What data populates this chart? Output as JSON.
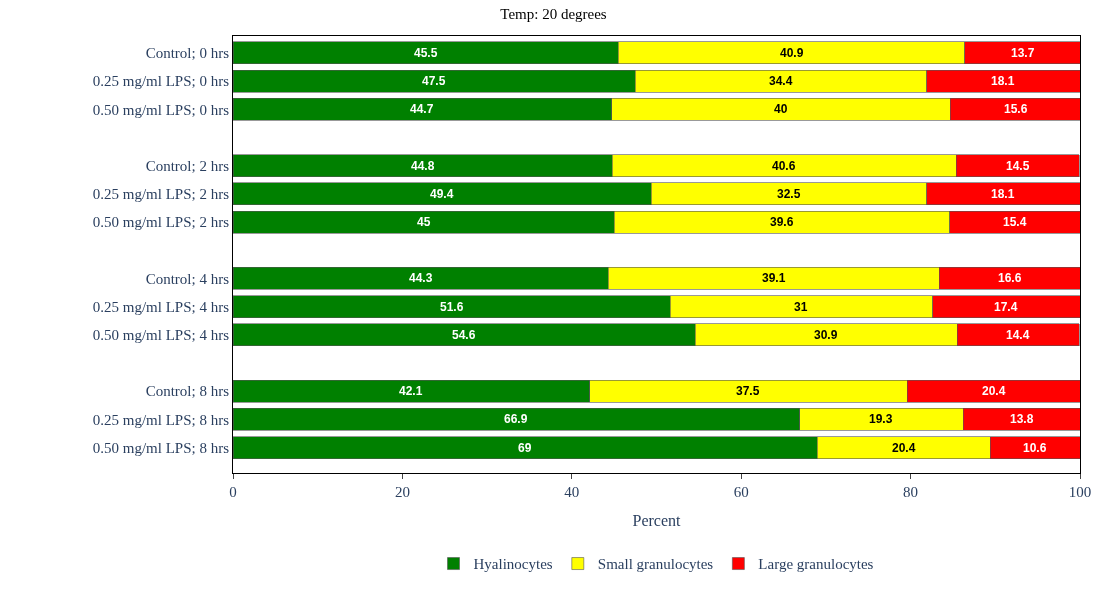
{
  "chart_data": {
    "type": "bar",
    "orientation": "horizontal",
    "stacked": true,
    "title": "Temp: 20 degrees",
    "xlabel": "Percent",
    "categories": [
      "Control; 0 hrs",
      "0.25 mg/ml LPS; 0 hrs",
      "0.50 mg/ml LPS; 0 hrs",
      null,
      "Control; 2 hrs",
      "0.25 mg/ml LPS; 2 hrs",
      "0.50 mg/ml LPS; 2 hrs",
      null,
      "Control; 4 hrs",
      "0.25 mg/ml LPS; 4 hrs",
      "0.50 mg/ml LPS; 4 hrs",
      null,
      "Control; 8 hrs",
      "0.25 mg/ml LPS; 8 hrs",
      "0.50 mg/ml LPS; 8 hrs"
    ],
    "series": [
      {
        "name": "Hyalinocytes",
        "color": "#008000",
        "values": [
          45.5,
          47.5,
          44.7,
          null,
          44.8,
          49.4,
          45,
          null,
          44.3,
          51.6,
          54.6,
          null,
          42.1,
          66.9,
          69
        ]
      },
      {
        "name": "Small granulocytes",
        "color": "#ffff00",
        "values": [
          40.9,
          34.4,
          40,
          null,
          40.6,
          32.5,
          39.6,
          null,
          39.1,
          31,
          30.9,
          null,
          37.5,
          19.3,
          20.4
        ]
      },
      {
        "name": "Large granulocytes",
        "color": "#ff0000",
        "values": [
          13.7,
          18.1,
          15.6,
          null,
          14.5,
          18.1,
          15.4,
          null,
          16.6,
          17.4,
          14.4,
          null,
          20.4,
          13.8,
          10.6
        ]
      }
    ],
    "xlim": [
      0,
      100
    ],
    "xticks": [
      0,
      20,
      40,
      60,
      80,
      100
    ],
    "data_labels": true,
    "legend": "bottom"
  }
}
